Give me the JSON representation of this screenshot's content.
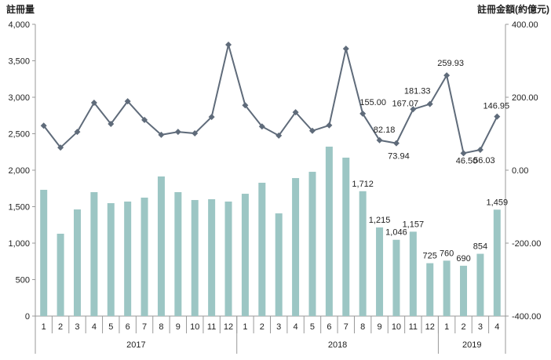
{
  "chart_data": {
    "type": "bar+line",
    "left_axis_title": "註冊量",
    "right_axis_title": "註冊金額(約億元)",
    "left_ylim": [
      0,
      4000
    ],
    "left_ticks": [
      "0",
      "500",
      "1,000",
      "1,500",
      "2,000",
      "2,500",
      "3,000",
      "3,500",
      "4,000"
    ],
    "right_ylim": [
      -400,
      400
    ],
    "right_ticks": [
      "-400.00",
      "-200.00",
      "0.00",
      "200.00",
      "400.00"
    ],
    "months": [
      "1",
      "2",
      "3",
      "4",
      "5",
      "6",
      "7",
      "8",
      "9",
      "10",
      "11",
      "12",
      "1",
      "2",
      "3",
      "4",
      "5",
      "6",
      "7",
      "8",
      "9",
      "10",
      "11",
      "12",
      "1",
      "2",
      "3",
      "4"
    ],
    "years": [
      {
        "label": "2017",
        "count": 12
      },
      {
        "label": "2018",
        "count": 12
      },
      {
        "label": "2019",
        "count": 4
      }
    ],
    "grid": false,
    "series": [
      {
        "name": "註冊量",
        "type": "bar",
        "axis": "left",
        "color": "#9cc6c4",
        "values": [
          1731,
          1129,
          1462,
          1699,
          1548,
          1570,
          1624,
          1914,
          1699,
          1591,
          1602,
          1570,
          1677,
          1828,
          1408,
          1892,
          1978,
          2323,
          2172,
          1712,
          1215,
          1046,
          1157,
          725,
          760,
          690,
          854,
          1459
        ],
        "labels": [
          "",
          "",
          "",
          "",
          "",
          "",
          "",
          "",
          "",
          "",
          "",
          "",
          "",
          "",
          "",
          "",
          "",
          "",
          "",
          "1,712",
          "1,215",
          "1,046",
          "1,157",
          "725",
          "760",
          "690",
          "854",
          "1,459"
        ]
      },
      {
        "name": "註冊金額",
        "type": "line",
        "axis": "right",
        "color": "#5f6b7a",
        "values": [
          122,
          62,
          105,
          185,
          127,
          189,
          138,
          97,
          105,
          101,
          146,
          344,
          178,
          120,
          95,
          159,
          108,
          123,
          333,
          155.0,
          82.18,
          73.94,
          167.07,
          181.33,
          259.93,
          46.5,
          56.03,
          146.95
        ],
        "labels": [
          "",
          "",
          "",
          "",
          "",
          "",
          "",
          "",
          "",
          "",
          "",
          "",
          "",
          "",
          "",
          "",
          "",
          "",
          "",
          "155.00",
          "82.18",
          "73.94",
          "167.07",
          "181.33",
          "259.93",
          "46.50",
          "56.03",
          "146.95"
        ]
      }
    ]
  }
}
